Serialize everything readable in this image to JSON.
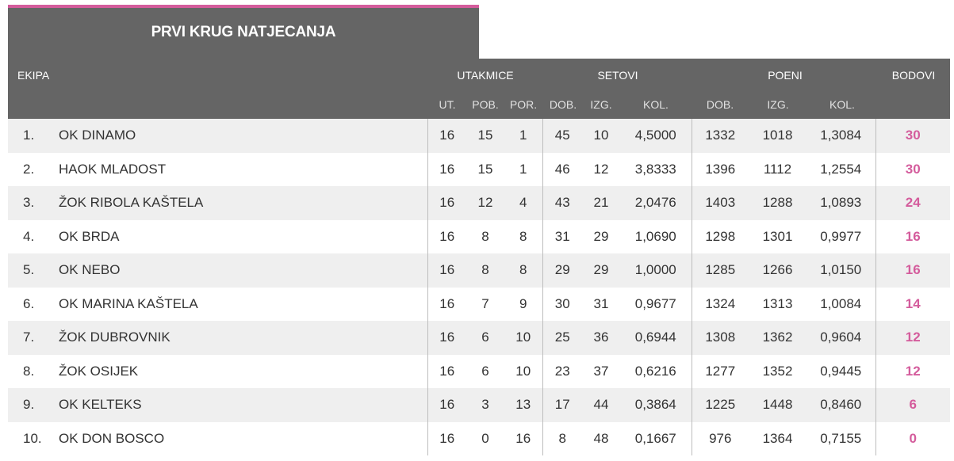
{
  "title": "PRVI KRUG NATJECANJA",
  "header": {
    "team": "EKIPA",
    "matches": "UTAKMICE",
    "sets": "SETOVI",
    "points": "POENI",
    "standing_points": "BODOVI",
    "sub": {
      "ut": "UT.",
      "pob": "POB.",
      "por": "POR.",
      "set_dob": "DOB.",
      "set_izg": "IZG.",
      "set_kol": "KOL.",
      "pts_dob": "DOB.",
      "pts_izg": "IZG.",
      "pts_kol": "KOL."
    }
  },
  "colors": {
    "accent": "#d45c9c",
    "header_bg": "#656565",
    "row_alt": "#efefef"
  },
  "rows": [
    {
      "rank": "1.",
      "team": "OK DINAMO",
      "ut": "16",
      "pob": "15",
      "por": "1",
      "sd": "45",
      "si": "10",
      "sk": "4,5000",
      "pd": "1332",
      "pi": "1018",
      "pk": "1,3084",
      "bod": "30"
    },
    {
      "rank": "2.",
      "team": "HAOK MLADOST",
      "ut": "16",
      "pob": "15",
      "por": "1",
      "sd": "46",
      "si": "12",
      "sk": "3,8333",
      "pd": "1396",
      "pi": "1112",
      "pk": "1,2554",
      "bod": "30"
    },
    {
      "rank": "3.",
      "team": "ŽOK RIBOLA KAŠTELA",
      "ut": "16",
      "pob": "12",
      "por": "4",
      "sd": "43",
      "si": "21",
      "sk": "2,0476",
      "pd": "1403",
      "pi": "1288",
      "pk": "1,0893",
      "bod": "24"
    },
    {
      "rank": "4.",
      "team": "OK BRDA",
      "ut": "16",
      "pob": "8",
      "por": "8",
      "sd": "31",
      "si": "29",
      "sk": "1,0690",
      "pd": "1298",
      "pi": "1301",
      "pk": "0,9977",
      "bod": "16"
    },
    {
      "rank": "5.",
      "team": "OK NEBO",
      "ut": "16",
      "pob": "8",
      "por": "8",
      "sd": "29",
      "si": "29",
      "sk": "1,0000",
      "pd": "1285",
      "pi": "1266",
      "pk": "1,0150",
      "bod": "16"
    },
    {
      "rank": "6.",
      "team": "OK MARINA KAŠTELA",
      "ut": "16",
      "pob": "7",
      "por": "9",
      "sd": "30",
      "si": "31",
      "sk": "0,9677",
      "pd": "1324",
      "pi": "1313",
      "pk": "1,0084",
      "bod": "14"
    },
    {
      "rank": "7.",
      "team": "ŽOK DUBROVNIK",
      "ut": "16",
      "pob": "6",
      "por": "10",
      "sd": "25",
      "si": "36",
      "sk": "0,6944",
      "pd": "1308",
      "pi": "1362",
      "pk": "0,9604",
      "bod": "12"
    },
    {
      "rank": "8.",
      "team": "ŽOK OSIJEK",
      "ut": "16",
      "pob": "6",
      "por": "10",
      "sd": "23",
      "si": "37",
      "sk": "0,6216",
      "pd": "1277",
      "pi": "1352",
      "pk": "0,9445",
      "bod": "12"
    },
    {
      "rank": "9.",
      "team": "OK KELTEKS",
      "ut": "16",
      "pob": "3",
      "por": "13",
      "sd": "17",
      "si": "44",
      "sk": "0,3864",
      "pd": "1225",
      "pi": "1448",
      "pk": "0,8460",
      "bod": "6"
    },
    {
      "rank": "10.",
      "team": "OK DON BOSCO",
      "ut": "16",
      "pob": "0",
      "por": "16",
      "sd": "8",
      "si": "48",
      "sk": "0,1667",
      "pd": "976",
      "pi": "1364",
      "pk": "0,7155",
      "bod": "0"
    }
  ]
}
